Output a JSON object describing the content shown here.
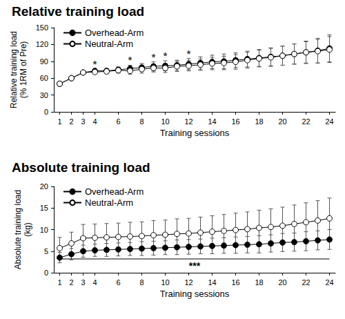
{
  "chart_data": [
    {
      "type": "line",
      "title": "Relative training load",
      "x_label": "Training sessions",
      "y_label": "Relative training load\n(% 1RM of Pre)",
      "x": [
        1,
        2,
        3,
        4,
        5,
        6,
        7,
        8,
        9,
        10,
        11,
        12,
        13,
        14,
        15,
        16,
        17,
        18,
        19,
        20,
        21,
        22,
        23,
        24
      ],
      "xlim": [
        0.5,
        24.5
      ],
      "xticks": [
        1,
        2,
        3,
        4,
        6,
        8,
        10,
        12,
        14,
        16,
        18,
        20,
        22,
        24
      ],
      "ylim": [
        0,
        150
      ],
      "yticks": [
        0,
        30,
        60,
        90,
        120,
        150
      ],
      "grid": false,
      "legend": "upper left",
      "series": [
        {
          "name": "Overhead-Arm",
          "color": "#000000",
          "marker": "circle",
          "line_style": "solid",
          "values": [
            50,
            60,
            70,
            73,
            73,
            75,
            77,
            79,
            81,
            82,
            83,
            85,
            87,
            89,
            90,
            92,
            94,
            96,
            98,
            100,
            103,
            106,
            109,
            113
          ],
          "errors": [
            0,
            0,
            2,
            3,
            4,
            5,
            6,
            7,
            8,
            9,
            9,
            10,
            11,
            12,
            13,
            13,
            14,
            15,
            16,
            17,
            18,
            20,
            22,
            24
          ]
        },
        {
          "name": "Neutral-Arm",
          "color": "#ffffff",
          "marker": "circle",
          "line_style": "solid",
          "values": [
            50,
            60,
            70,
            71,
            72,
            74,
            73,
            76,
            78,
            78,
            81,
            82,
            84,
            86,
            87,
            89,
            92,
            95,
            97,
            100,
            103,
            106,
            108,
            111
          ],
          "errors": [
            0,
            0,
            2,
            3,
            4,
            5,
            6,
            7,
            7,
            8,
            9,
            9,
            10,
            11,
            12,
            13,
            14,
            15,
            16,
            17,
            18,
            19,
            21,
            23
          ]
        }
      ],
      "significance": {
        "label": "*",
        "sessions": [
          4,
          7,
          9,
          10,
          12
        ]
      }
    },
    {
      "type": "line",
      "title": "Absolute training load",
      "x_label": "Training sessions",
      "y_label": "Absolute training load\n(kg)",
      "x": [
        1,
        2,
        3,
        4,
        5,
        6,
        7,
        8,
        9,
        10,
        11,
        12,
        13,
        14,
        15,
        16,
        17,
        18,
        19,
        20,
        21,
        22,
        23,
        24
      ],
      "xlim": [
        0.5,
        24.5
      ],
      "xticks": [
        1,
        2,
        3,
        4,
        6,
        8,
        10,
        12,
        14,
        16,
        18,
        20,
        22,
        24
      ],
      "ylim": [
        0,
        20
      ],
      "yticks": [
        0,
        5,
        10,
        15,
        20
      ],
      "grid": false,
      "legend": "upper left",
      "series": [
        {
          "name": "Overhead-Arm",
          "color": "#000000",
          "marker": "circle",
          "line_style": "solid",
          "values": [
            3.5,
            4.3,
            5.0,
            5.2,
            5.3,
            5.4,
            5.5,
            5.6,
            5.7,
            5.8,
            5.9,
            6.0,
            6.1,
            6.2,
            6.3,
            6.4,
            6.5,
            6.6,
            6.8,
            7.0,
            7.1,
            7.3,
            7.5,
            7.7
          ],
          "errors": [
            1.2,
            1.3,
            1.4,
            1.4,
            1.5,
            1.5,
            1.5,
            1.6,
            1.6,
            1.6,
            1.7,
            1.7,
            1.7,
            1.8,
            1.8,
            1.9,
            1.9,
            2.0,
            2.0,
            2.1,
            2.1,
            2.2,
            2.2,
            2.3
          ]
        },
        {
          "name": "Neutral-Arm",
          "color": "#ffffff",
          "marker": "circle",
          "line_style": "solid",
          "values": [
            5.7,
            6.8,
            8.0,
            8.1,
            8.2,
            8.3,
            8.4,
            8.5,
            8.7,
            8.8,
            9.0,
            9.1,
            9.3,
            9.5,
            9.7,
            9.9,
            10.1,
            10.4,
            10.6,
            10.9,
            11.3,
            11.7,
            12.1,
            12.6
          ],
          "errors": [
            2.5,
            2.6,
            3.2,
            3.2,
            3.2,
            3.2,
            3.3,
            3.3,
            3.4,
            3.4,
            3.5,
            3.5,
            3.6,
            3.7,
            3.8,
            3.9,
            4.0,
            4.1,
            4.2,
            4.3,
            4.4,
            4.5,
            4.6,
            4.7
          ]
        }
      ],
      "significance": {
        "label": "***",
        "from": 1,
        "to": 24
      }
    }
  ]
}
